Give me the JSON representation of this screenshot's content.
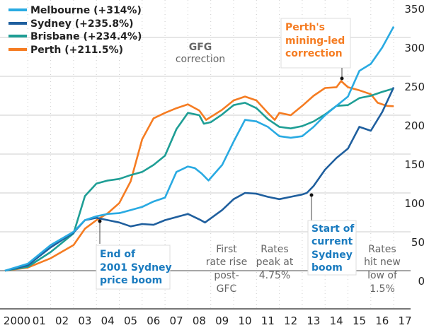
{
  "chart_data": {
    "type": "line",
    "title": "",
    "xlabel": "",
    "ylabel": "",
    "xlim": [
      2000,
      2017
    ],
    "ylim": [
      0,
      350
    ],
    "grid": true,
    "legend_position": "top-left",
    "x_tick_labels": [
      "2000",
      "01",
      "02",
      "03",
      "04",
      "05",
      "06",
      "07",
      "08",
      "09",
      "10",
      "11",
      "12",
      "13",
      "14",
      "15",
      "16",
      "17"
    ],
    "y_ticks": [
      0,
      50,
      100,
      150,
      200,
      250,
      300,
      350
    ],
    "y_tick_labels": [
      "0",
      "50",
      "100",
      "150",
      "200",
      "250",
      "300",
      "350"
    ],
    "series": [
      {
        "name": "Melbourne (+314%)",
        "color": "#29aae2",
        "x": [
          2000,
          2001,
          2002,
          2003,
          2003.5,
          2004,
          2004.5,
          2005,
          2005.5,
          2006,
          2006.5,
          2007,
          2007.5,
          2008,
          2008.3,
          2008.6,
          2008.9,
          2009.5,
          2010,
          2010.5,
          2011,
          2011.5,
          2012,
          2012.5,
          2013,
          2013.5,
          2014,
          2014.5,
          2015,
          2015.5,
          2016,
          2016.5,
          2017
        ],
        "y": [
          0,
          9,
          33,
          50,
          65,
          70,
          73,
          74,
          78,
          82,
          89,
          94,
          127,
          134,
          132,
          125,
          116,
          136,
          166,
          194,
          192,
          185,
          173,
          171,
          173,
          185,
          200,
          212,
          224,
          257,
          266,
          287,
          314
        ]
      },
      {
        "name": "Sydney (+235.8%)",
        "color": "#1f5f9e",
        "x": [
          2000,
          2001,
          2002,
          2003,
          2003.5,
          2004,
          2004.5,
          2005,
          2005.5,
          2006,
          2006.5,
          2007,
          2007.5,
          2008,
          2008.5,
          2008.75,
          2009.5,
          2010,
          2010.5,
          2011,
          2011.5,
          2012,
          2012.5,
          2013,
          2013.2,
          2013.5,
          2014,
          2014.5,
          2015,
          2015.5,
          2016,
          2016.5,
          2017
        ],
        "y": [
          0,
          7,
          30,
          49,
          65,
          68,
          65,
          62,
          57,
          60,
          59,
          65,
          69,
          73,
          66,
          62,
          78,
          92,
          100,
          99,
          95,
          92,
          95,
          98,
          100,
          109,
          130,
          145,
          157,
          185,
          180,
          204,
          235.8
        ]
      },
      {
        "name": "Brisbane (+234.4%)",
        "color": "#1e9e95",
        "x": [
          2000,
          2001,
          2002,
          2003,
          2003.5,
          2004,
          2004.5,
          2005,
          2005.5,
          2006,
          2006.5,
          2007,
          2007.5,
          2008,
          2008.5,
          2008.7,
          2009,
          2009.5,
          2010,
          2010.5,
          2011,
          2011.5,
          2012,
          2012.5,
          2013,
          2013.5,
          2014,
          2014.5,
          2015,
          2015.5,
          2016,
          2016.5,
          2017
        ],
        "y": [
          0,
          5,
          24,
          48,
          96,
          112,
          116,
          118,
          123,
          127,
          136,
          148,
          182,
          203,
          200,
          189,
          191,
          201,
          213,
          216,
          209,
          195,
          185,
          183,
          186,
          192,
          201,
          212,
          213,
          222,
          225,
          230,
          234.4
        ]
      },
      {
        "name": "Perth (+211.5%)",
        "color": "#f57c22",
        "x": [
          2000,
          2001,
          2002,
          2003,
          2003.5,
          2004,
          2004.5,
          2005,
          2005.5,
          2006,
          2006.5,
          2007,
          2007.5,
          2008,
          2008.5,
          2008.8,
          2009.5,
          2010,
          2010.5,
          2011,
          2011.5,
          2011.8,
          2012,
          2012.5,
          2013,
          2013.5,
          2014,
          2014.5,
          2014.7,
          2015,
          2015.5,
          2016,
          2016.3,
          2016.7,
          2017
        ],
        "y": [
          0,
          4,
          16,
          33,
          54,
          65,
          74,
          87,
          115,
          169,
          196,
          203,
          209,
          214,
          206,
          194,
          207,
          219,
          224,
          219,
          203,
          194,
          203,
          200,
          212,
          225,
          235,
          236,
          244,
          236,
          232,
          227,
          216,
          212,
          211.5
        ]
      }
    ],
    "annotations": {
      "gfc": [
        "GFG",
        "correction"
      ],
      "perth": [
        "Perth's",
        "mining-led",
        "correction"
      ],
      "end_2001": [
        "End of",
        "2001 Sydney",
        "price boom"
      ],
      "first_rate": [
        "First",
        "rate rise",
        "post-",
        "GFC"
      ],
      "rates_peak": [
        "Rates",
        "peak at",
        "4.75%"
      ],
      "start_sydney": [
        "Start of",
        "current",
        "Sydney",
        "boom"
      ],
      "rates_low": [
        "Rates",
        "hit new",
        "low of",
        "1.5%"
      ]
    }
  }
}
